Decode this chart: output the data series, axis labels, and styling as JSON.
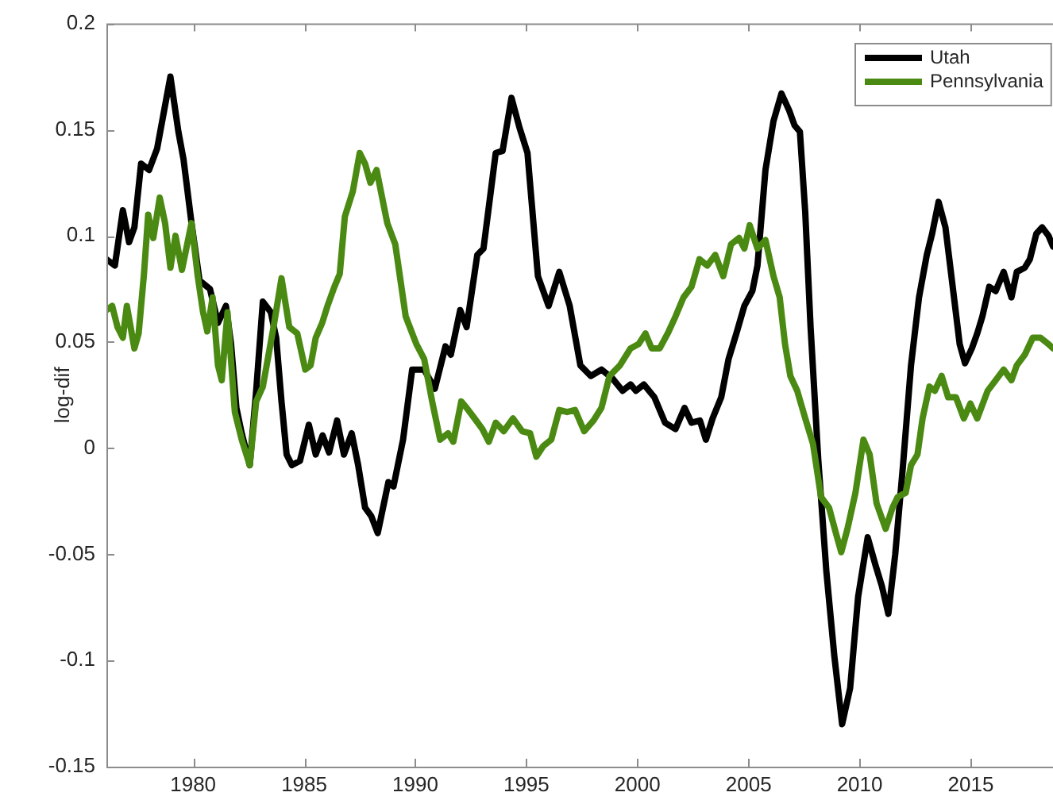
{
  "chart_data": {
    "type": "line",
    "ylabel": "log-dif",
    "legend": "top right",
    "xlim": [
      1976.1,
      2018.7
    ],
    "xticks": [
      1980,
      1985,
      1990,
      1995,
      2000,
      2005,
      2010,
      2015
    ],
    "ylim": [
      -0.15,
      0.2
    ],
    "yticks": [
      -0.15,
      -0.1,
      -0.05,
      0,
      0.05,
      0.1,
      0.15,
      0.2
    ],
    "series": [
      {
        "name": "Utah",
        "color": "#000000",
        "x": [
          1976.1,
          1976.48,
          1976.84,
          1977.12,
          1977.36,
          1977.66,
          1978.02,
          1978.38,
          1978.98,
          1979.34,
          1979.57,
          1979.93,
          1980.29,
          1980.76,
          1981.12,
          1981.48,
          1981.71,
          1981.95,
          1982.19,
          1982.55,
          1982.84,
          1983.14,
          1983.5,
          1983.74,
          1983.98,
          1984.21,
          1984.45,
          1984.81,
          1985.21,
          1985.52,
          1985.83,
          1986.12,
          1986.48,
          1986.79,
          1987.14,
          1987.43,
          1987.74,
          1988.02,
          1988.31,
          1988.55,
          1988.79,
          1989.02,
          1989.45,
          1989.86,
          1990.4,
          1990.88,
          1991.36,
          1991.6,
          1992.02,
          1992.31,
          1992.79,
          1993.07,
          1993.62,
          1993.93,
          1994.33,
          1994.69,
          1995.05,
          1995.52,
          1996.0,
          1996.48,
          1996.95,
          1997.43,
          1997.9,
          1998.38,
          1998.86,
          1999.33,
          1999.69,
          1999.93,
          2000.29,
          2000.76,
          2001.24,
          2001.71,
          2002.12,
          2002.43,
          2002.81,
          2003.08,
          2003.38,
          2003.77,
          2004.1,
          2004.45,
          2004.81,
          2005.17,
          2005.4,
          2005.76,
          2006.12,
          2006.48,
          2006.83,
          2007.07,
          2007.31,
          2007.55,
          2007.79,
          2008.14,
          2008.5,
          2008.86,
          2009.21,
          2009.57,
          2009.93,
          2010.36,
          2010.71,
          2011.0,
          2011.29,
          2011.6,
          2011.95,
          2012.31,
          2012.67,
          2013.02,
          2013.26,
          2013.55,
          2013.86,
          2014.21,
          2014.5,
          2014.74,
          2015.05,
          2015.29,
          2015.52,
          2015.83,
          2016.12,
          2016.48,
          2016.83,
          2017.07,
          2017.43,
          2017.66,
          2017.95,
          2018.21,
          2018.5,
          2018.7
        ],
        "values": [
          0.089,
          0.086,
          0.112,
          0.097,
          0.104,
          0.134,
          0.131,
          0.141,
          0.175,
          0.149,
          0.136,
          0.106,
          0.079,
          0.075,
          0.059,
          0.067,
          0.049,
          0.019,
          0.007,
          -0.008,
          0.027,
          0.069,
          0.064,
          0.052,
          0.022,
          -0.003,
          -0.008,
          -0.006,
          0.011,
          -0.003,
          0.006,
          -0.002,
          0.013,
          -0.003,
          0.007,
          -0.008,
          -0.028,
          -0.032,
          -0.04,
          -0.028,
          -0.016,
          -0.018,
          0.004,
          0.037,
          0.037,
          0.028,
          0.048,
          0.044,
          0.065,
          0.057,
          0.091,
          0.094,
          0.139,
          0.14,
          0.165,
          0.151,
          0.139,
          0.081,
          0.067,
          0.083,
          0.067,
          0.039,
          0.034,
          0.037,
          0.033,
          0.027,
          0.03,
          0.027,
          0.03,
          0.024,
          0.012,
          0.009,
          0.019,
          0.012,
          0.013,
          0.004,
          0.014,
          0.024,
          0.042,
          0.054,
          0.067,
          0.074,
          0.086,
          0.131,
          0.154,
          0.167,
          0.159,
          0.152,
          0.149,
          0.111,
          0.057,
          -0.006,
          -0.058,
          -0.098,
          -0.13,
          -0.113,
          -0.07,
          -0.042,
          -0.055,
          -0.065,
          -0.078,
          -0.05,
          -0.008,
          0.039,
          0.071,
          0.091,
          0.101,
          0.116,
          0.104,
          0.074,
          0.049,
          0.04,
          0.047,
          0.054,
          0.062,
          0.076,
          0.074,
          0.083,
          0.071,
          0.083,
          0.085,
          0.089,
          0.101,
          0.104,
          0.1,
          0.095
        ]
      },
      {
        "name": "Pennsylvania",
        "color": "#4b8a12",
        "x": [
          1976.1,
          1976.36,
          1976.6,
          1976.84,
          1977.02,
          1977.19,
          1977.36,
          1977.55,
          1977.79,
          1977.98,
          1978.21,
          1978.5,
          1978.74,
          1978.98,
          1979.21,
          1979.5,
          1979.93,
          1980.21,
          1980.45,
          1980.64,
          1980.88,
          1981.12,
          1981.29,
          1981.55,
          1981.88,
          1982.19,
          1982.55,
          1982.84,
          1983.14,
          1983.62,
          1983.98,
          1984.33,
          1984.69,
          1985.05,
          1985.29,
          1985.52,
          1985.81,
          1986.05,
          1986.36,
          1986.6,
          1986.83,
          1987.19,
          1987.5,
          1987.74,
          1987.98,
          1988.26,
          1988.74,
          1989.1,
          1989.57,
          1990.05,
          1990.4,
          1990.76,
          1991.12,
          1991.48,
          1991.71,
          1992.07,
          1992.31,
          1992.67,
          1993.02,
          1993.31,
          1993.62,
          1993.98,
          1994.4,
          1994.81,
          1995.17,
          1995.45,
          1995.76,
          1996.12,
          1996.48,
          1996.83,
          1997.19,
          1997.6,
          1998.02,
          1998.38,
          1998.74,
          1999.21,
          1999.69,
          2000.05,
          2000.36,
          2000.64,
          2001.0,
          2001.36,
          2001.71,
          2002.07,
          2002.43,
          2002.79,
          2003.14,
          2003.5,
          2003.86,
          2004.21,
          2004.57,
          2004.81,
          2005.05,
          2005.4,
          2005.76,
          2006.12,
          2006.4,
          2006.64,
          2006.88,
          2007.19,
          2007.55,
          2007.9,
          2008.26,
          2008.62,
          2008.93,
          2009.17,
          2009.45,
          2009.81,
          2010.17,
          2010.45,
          2010.76,
          2011.17,
          2011.48,
          2011.71,
          2012.07,
          2012.31,
          2012.6,
          2012.83,
          2013.14,
          2013.38,
          2013.69,
          2013.98,
          2014.33,
          2014.69,
          2014.98,
          2015.29,
          2015.76,
          2016.12,
          2016.48,
          2016.83,
          2017.07,
          2017.43,
          2017.79,
          2018.14,
          2018.5,
          2018.7
        ],
        "values": [
          0.065,
          0.067,
          0.057,
          0.052,
          0.067,
          0.057,
          0.047,
          0.054,
          0.082,
          0.11,
          0.099,
          0.118,
          0.106,
          0.085,
          0.1,
          0.084,
          0.106,
          0.081,
          0.064,
          0.055,
          0.071,
          0.039,
          0.032,
          0.064,
          0.017,
          0.004,
          -0.008,
          0.022,
          0.029,
          0.057,
          0.08,
          0.057,
          0.054,
          0.037,
          0.039,
          0.052,
          0.059,
          0.067,
          0.076,
          0.082,
          0.109,
          0.121,
          0.139,
          0.134,
          0.125,
          0.131,
          0.106,
          0.096,
          0.062,
          0.049,
          0.042,
          0.022,
          0.004,
          0.007,
          0.003,
          0.022,
          0.019,
          0.014,
          0.009,
          0.003,
          0.012,
          0.008,
          0.014,
          0.008,
          0.007,
          -0.004,
          0.001,
          0.004,
          0.018,
          0.017,
          0.018,
          0.008,
          0.013,
          0.019,
          0.034,
          0.039,
          0.047,
          0.049,
          0.054,
          0.047,
          0.047,
          0.054,
          0.062,
          0.071,
          0.076,
          0.089,
          0.086,
          0.091,
          0.081,
          0.096,
          0.099,
          0.094,
          0.105,
          0.094,
          0.098,
          0.081,
          0.071,
          0.049,
          0.034,
          0.027,
          0.014,
          0.002,
          -0.023,
          -0.028,
          -0.04,
          -0.049,
          -0.038,
          -0.021,
          0.004,
          -0.003,
          -0.026,
          -0.038,
          -0.028,
          -0.023,
          -0.021,
          -0.008,
          -0.003,
          0.014,
          0.029,
          0.027,
          0.034,
          0.024,
          0.024,
          0.014,
          0.021,
          0.014,
          0.027,
          0.032,
          0.037,
          0.032,
          0.039,
          0.044,
          0.052,
          0.052,
          0.049,
          0.047
        ]
      }
    ]
  }
}
